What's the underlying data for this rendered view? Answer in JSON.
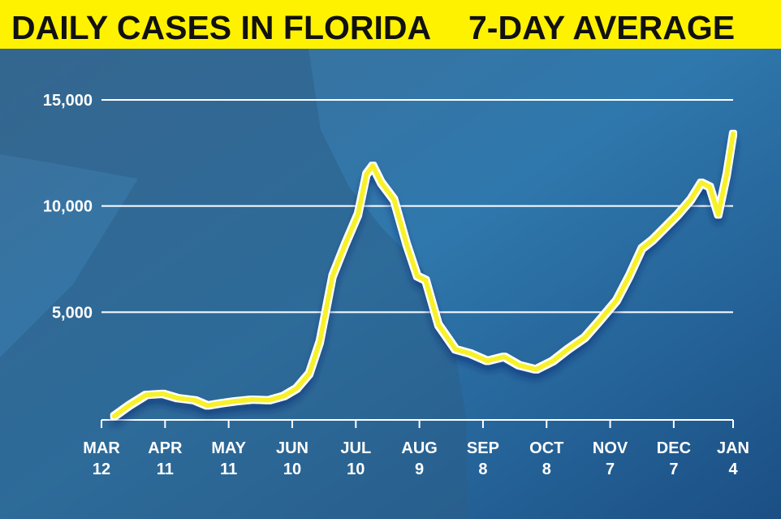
{
  "chart_data": {
    "type": "line",
    "title": "DAILY CASES IN FLORIDA",
    "subtitle": "7-DAY AVERAGE",
    "x": [
      6,
      13,
      21,
      29,
      36,
      44,
      50,
      56,
      63,
      71,
      79,
      86,
      92,
      98,
      103,
      109,
      115,
      121,
      125,
      128,
      132,
      138,
      144,
      149,
      153,
      159,
      167,
      174,
      182,
      190,
      197,
      205,
      213,
      220,
      228,
      235,
      243,
      249,
      255,
      260,
      266,
      272,
      278,
      283,
      287,
      291,
      295,
      298
    ],
    "series": [
      {
        "color": "#f7f12a",
        "values": [
          100,
          600,
          1100,
          1150,
          950,
          850,
          600,
          700,
          800,
          880,
          850,
          1050,
          1400,
          2100,
          3600,
          6700,
          8200,
          9600,
          11500,
          11900,
          11100,
          10300,
          8200,
          6700,
          6500,
          4400,
          3250,
          3050,
          2700,
          2900,
          2500,
          2300,
          2700,
          3250,
          3800,
          4600,
          5550,
          6700,
          8000,
          8400,
          9000,
          9600,
          10300,
          11100,
          10900,
          9600,
          11500,
          13400
        ]
      }
    ],
    "xlim": [
      0,
      298
    ],
    "xticks": [
      {
        "value": 0,
        "label": "MAR 12"
      },
      {
        "value": 30,
        "label": "APR 11"
      },
      {
        "value": 60,
        "label": "MAY 11"
      },
      {
        "value": 90,
        "label": "JUN 10"
      },
      {
        "value": 120,
        "label": "JUL 10"
      },
      {
        "value": 150,
        "label": "AUG 9"
      },
      {
        "value": 180,
        "label": "SEP 8"
      },
      {
        "value": 210,
        "label": "OCT 8"
      },
      {
        "value": 240,
        "label": "NOV 7"
      },
      {
        "value": 270,
        "label": "DEC 7"
      },
      {
        "value": 298,
        "label": "JAN 4"
      }
    ],
    "ylim": [
      0,
      15000
    ],
    "yticks": [
      {
        "value": 5000,
        "label": "5,000"
      },
      {
        "value": 10000,
        "label": "10,000"
      },
      {
        "value": 15000,
        "label": "15,000"
      }
    ],
    "grid": true
  }
}
